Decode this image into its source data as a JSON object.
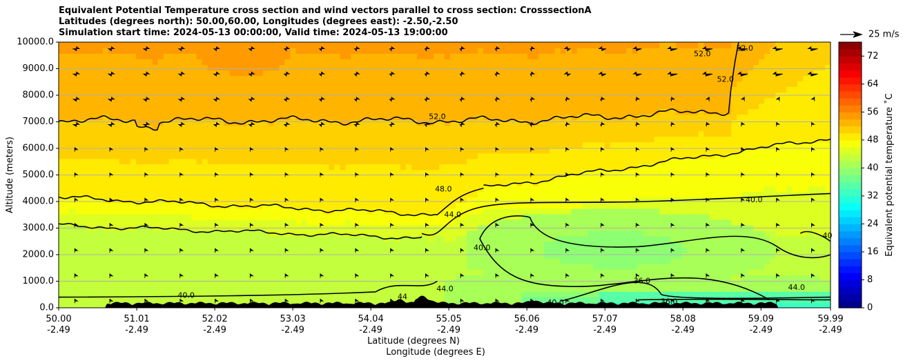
{
  "chart_data": {
    "type": "heatmap",
    "title": [
      "Equivalent Potential Temperature cross section and wind vectors parallel to cross section: CrosssectionA",
      "Latitudes (degrees north): 50.00,60.00, Longitudes (degrees east): -2.50,-2.50",
      "Simulation start time: 2024-05-13 00:00:00, Valid time: 2024-05-13 19:00:00"
    ],
    "xlabel": "Latitude (degrees N)",
    "xlabel2": "Longitude (degrees E)",
    "ylabel": "Altitude (meters)",
    "xlim": [
      50.0,
      59.99
    ],
    "ylim": [
      0,
      10000
    ],
    "x_ticks": [
      {
        "lat": "50.00",
        "lon": "-2.49",
        "value": 50.0
      },
      {
        "lat": "51.01",
        "lon": "-2.49",
        "value": 51.01
      },
      {
        "lat": "52.02",
        "lon": "-2.49",
        "value": 52.02
      },
      {
        "lat": "53.03",
        "lon": "-2.49",
        "value": 53.03
      },
      {
        "lat": "54.04",
        "lon": "-2.49",
        "value": 54.04
      },
      {
        "lat": "55.05",
        "lon": "-2.49",
        "value": 55.05
      },
      {
        "lat": "56.06",
        "lon": "-2.49",
        "value": 56.06
      },
      {
        "lat": "57.07",
        "lon": "-2.49",
        "value": 57.07
      },
      {
        "lat": "58.08",
        "lon": "-2.49",
        "value": 58.08
      },
      {
        "lat": "59.09",
        "lon": "-2.49",
        "value": 59.09
      },
      {
        "lat": "59.99",
        "lon": "-2.49",
        "value": 59.99
      }
    ],
    "y_ticks": [
      {
        "label": "0.0",
        "value": 0
      },
      {
        "label": "1000.0",
        "value": 1000
      },
      {
        "label": "2000.0",
        "value": 2000
      },
      {
        "label": "3000.0",
        "value": 3000
      },
      {
        "label": "4000.0",
        "value": 4000
      },
      {
        "label": "5000.0",
        "value": 5000
      },
      {
        "label": "6000.0",
        "value": 6000
      },
      {
        "label": "7000.0",
        "value": 7000
      },
      {
        "label": "8000.0",
        "value": 8000
      },
      {
        "label": "9000.0",
        "value": 9000
      },
      {
        "label": "10000.0",
        "value": 10000
      }
    ],
    "grid": "horizontal",
    "colorbar": {
      "label": "Equivalent potential temperature ˚C",
      "range": [
        0,
        76
      ],
      "ticks": [
        "0",
        "8",
        "16",
        "24",
        "32",
        "40",
        "48",
        "56",
        "64",
        "72"
      ],
      "colormap": "jet"
    },
    "quiver_key": {
      "label": "25 m/s",
      "speed": 25
    },
    "contour_labels": [
      {
        "text": "52.0",
        "x": 54.9,
        "y": 7180
      },
      {
        "text": "52.0",
        "x": 58.63,
        "y": 8580
      },
      {
        "text": "52.0",
        "x": 58.88,
        "y": 9750
      },
      {
        "text": "52.0",
        "x": 58.33,
        "y": 9550
      },
      {
        "text": "48.0",
        "x": 54.98,
        "y": 4450
      },
      {
        "text": "44.0",
        "x": 55.1,
        "y": 3500
      },
      {
        "text": "40.0",
        "x": 59.0,
        "y": 4050
      },
      {
        "text": "40.0",
        "x": 55.48,
        "y": 2250
      },
      {
        "text": "40.0",
        "x": 51.65,
        "y": 450
      },
      {
        "text": "44.0",
        "x": 55.0,
        "y": 700
      },
      {
        "text": "44",
        "x": 54.45,
        "y": 400
      },
      {
        "text": "36.0",
        "x": 57.55,
        "y": 1000
      },
      {
        "text": "36.0",
        "x": 57.9,
        "y": 220
      },
      {
        "text": "40.0",
        "x": 56.43,
        "y": 180
      },
      {
        "text": "44.0",
        "x": 59.55,
        "y": 750
      },
      {
        "text": "40",
        "x": 59.95,
        "y": 2700
      }
    ],
    "contour_levels": [
      36,
      40,
      44,
      48,
      52
    ],
    "field_regions": [
      {
        "name": "high-theta-top",
        "theta_approx": 53
      },
      {
        "name": "mid-layer",
        "theta_approx": 49
      },
      {
        "name": "lower-layer",
        "theta_approx": 45
      },
      {
        "name": "cool-pool-north",
        "theta_approx": 40
      },
      {
        "name": "surface-cold-north",
        "theta_approx": 34
      }
    ],
    "wind_vectors": "parallel-component arrows; southerly flow in south/mid levels, reversed (northerly) in upper north"
  }
}
